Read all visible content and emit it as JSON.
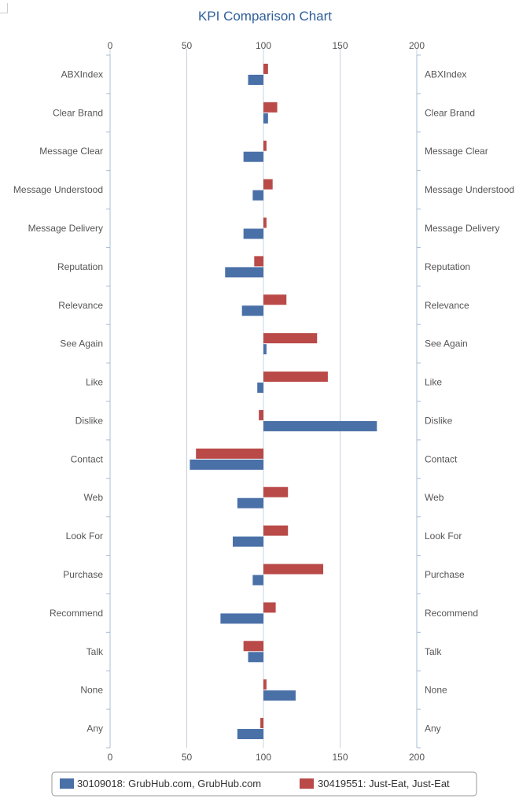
{
  "chart_data": {
    "type": "bar",
    "orientation": "horizontal",
    "title": "KPI Comparison Chart",
    "xlabel": "",
    "ylabel": "",
    "xlim": [
      0,
      200
    ],
    "baseline": 100,
    "xticks": [
      "0",
      "50",
      "100",
      "150",
      "200"
    ],
    "grid": true,
    "legend_position": "bottom",
    "categories": [
      "ABXIndex",
      "Clear Brand",
      "Message Clear",
      "Message Understood",
      "Message Delivery",
      "Reputation",
      "Relevance",
      "See Again",
      "Like",
      "Dislike",
      "Contact",
      "Web",
      "Look For",
      "Purchase",
      "Recommend",
      "Talk",
      "None",
      "Any"
    ],
    "series": [
      {
        "name": "30419551: Just-Eat, Just-Eat",
        "color": "#b94a48",
        "values": [
          103,
          109,
          102,
          106,
          102,
          94,
          115,
          135,
          142,
          97,
          56,
          116,
          116,
          139,
          108,
          87,
          102,
          98
        ]
      },
      {
        "name": "30109018: GrubHub.com, GrubHub.com",
        "color": "#4a70a8",
        "values": [
          90,
          103,
          87,
          93,
          87,
          75,
          86,
          102,
          96,
          174,
          52,
          83,
          80,
          93,
          72,
          90,
          121,
          83
        ]
      }
    ]
  }
}
